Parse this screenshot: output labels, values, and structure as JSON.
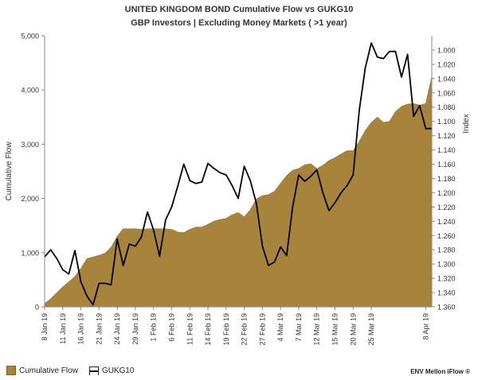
{
  "chart_data": {
    "type": "area",
    "title": "UNITED KINGDOM  BOND Cumulative Flow vs  GUKG10",
    "subtitle": "GBP Investors | Excluding Money Markets ( >1 year)",
    "ylabel": "Cumulative Flow",
    "y2label": "Index",
    "ylim": [
      0,
      5000
    ],
    "y2lim": [
      1.36,
      0.98
    ],
    "y2_inverted": true,
    "yticks": [
      "0",
      "1,000",
      "2,000",
      "3,000",
      "4,000",
      "5,000"
    ],
    "y2ticks": [
      "1.000",
      "1.020",
      "1.040",
      "1.060",
      "1.080",
      "1.100",
      "1.120",
      "1.140",
      "1.160",
      "1.180",
      "1.200",
      "1.220",
      "1.240",
      "1.260",
      "1.280",
      "1.300",
      "1.320",
      "1.340",
      "1.360"
    ],
    "xticks": [
      "8 Jan 19",
      "11 Jan 19",
      "16 Jan 19",
      "21 Jan 19",
      "24 Jan 19",
      "29 Jan 19",
      "1 Feb 19",
      "6 Feb 19",
      "11 Feb 19",
      "14 Feb 19",
      "19 Feb 19",
      "22 Feb 19",
      "27 Feb 19",
      "4 Mar 19",
      "7 Mar 19",
      "12 Mar 19",
      "15 Mar 19",
      "20 Mar 19",
      "25 Mar 19",
      "8 Apr 19"
    ],
    "xtick_index": [
      0,
      3,
      6,
      9,
      12,
      15,
      18,
      21,
      24,
      27,
      30,
      33,
      36,
      39,
      42,
      45,
      48,
      51,
      54,
      63
    ],
    "grid": false,
    "legend_position": "bottom-left",
    "series": [
      {
        "name": "Cumulative Flow",
        "axis": "left",
        "color": "#a8843a",
        "values": [
          60,
          150,
          260,
          370,
          460,
          560,
          710,
          890,
          920,
          950,
          990,
          1100,
          1300,
          1440,
          1440,
          1440,
          1430,
          1440,
          1440,
          1440,
          1440,
          1430,
          1380,
          1370,
          1430,
          1470,
          1470,
          1520,
          1580,
          1610,
          1630,
          1700,
          1740,
          1660,
          1790,
          1990,
          2050,
          2070,
          2130,
          2280,
          2420,
          2520,
          2550,
          2620,
          2640,
          2550,
          2610,
          2700,
          2750,
          2820,
          2880,
          2880,
          3050,
          3250,
          3400,
          3500,
          3400,
          3420,
          3600,
          3700,
          3740,
          3750,
          3720,
          3750,
          4250
        ]
      },
      {
        "name": "GUKG10",
        "axis": "right",
        "color": "#000000",
        "values": [
          1.29,
          1.28,
          1.292,
          1.308,
          1.314,
          1.281,
          1.325,
          1.345,
          1.357,
          1.327,
          1.327,
          1.329,
          1.265,
          1.302,
          1.272,
          1.275,
          1.262,
          1.227,
          1.252,
          1.289,
          1.238,
          1.22,
          1.191,
          1.16,
          1.183,
          1.187,
          1.185,
          1.159,
          1.166,
          1.172,
          1.175,
          1.19,
          1.208,
          1.163,
          1.183,
          1.215,
          1.275,
          1.302,
          1.297,
          1.276,
          1.288,
          1.22,
          1.175,
          1.184,
          1.177,
          1.168,
          1.2,
          1.225,
          1.214,
          1.2,
          1.19,
          1.175,
          1.085,
          1.025,
          0.99,
          1.01,
          1.012,
          1.002,
          1.002,
          1.038,
          1.006,
          1.093,
          1.078,
          1.11,
          1.11
        ]
      }
    ]
  },
  "legend": {
    "series1": "Cumulative Flow",
    "series2": "GUKG10"
  },
  "brand": "ENV Mellon iFlow ®"
}
